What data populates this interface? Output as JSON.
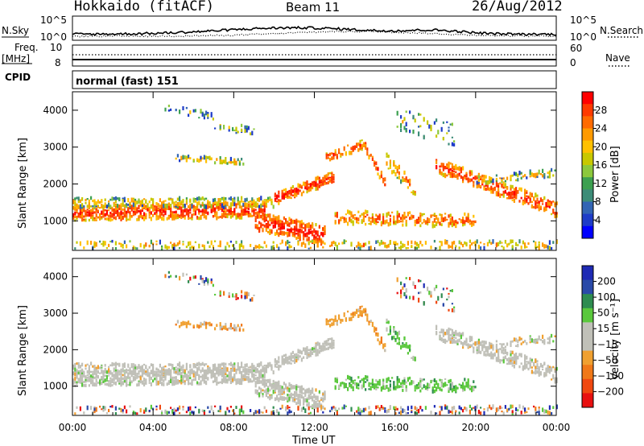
{
  "header": {
    "station": "Hokkaido (fitACF)",
    "beam": "Beam 11",
    "date": "26/Aug/2012"
  },
  "nsky_panel": {
    "left_label": "N.Sky",
    "left_ticks": [
      "10^5",
      "10^0"
    ],
    "right_label": "N.Search",
    "right_ticks": [
      "10^5",
      "10^0"
    ]
  },
  "freq_panel": {
    "left_label_1": "Freq.",
    "left_label_2": "[MHz]",
    "left_ticks": [
      "10",
      "8"
    ],
    "right_label": "Nave",
    "right_ticks": [
      "60",
      "0"
    ]
  },
  "cpid_panel": {
    "label": "CPID",
    "value": "normal (fast) 151"
  },
  "chart_data": [
    {
      "type": "heatmap",
      "name": "power",
      "ylabel": "Slant Range [km]",
      "ylim": [
        200,
        4500
      ],
      "yticks": [
        "1000",
        "2000",
        "3000",
        "4000"
      ],
      "colorbar_label": "Power [dB]",
      "colorbar_ticks": [
        "28",
        "24",
        "20",
        "16",
        "12",
        "8",
        "4"
      ],
      "colorbar_colors": [
        "#ff0000",
        "#ff3a00",
        "#ff6a00",
        "#ff9a00",
        "#ffc000",
        "#c8c800",
        "#8cc83c",
        "#3ca050",
        "#3c8c78",
        "#3264b4",
        "#1e3cc8",
        "#0000ff"
      ]
    },
    {
      "type": "heatmap",
      "name": "velocity",
      "ylabel": "Slant Range [km]",
      "ylim": [
        200,
        4500
      ],
      "yticks": [
        "1000",
        "2000",
        "3000",
        "4000"
      ],
      "xlabel": "Time UT",
      "xticks": [
        "00:00",
        "04:00",
        "08:00",
        "12:00",
        "16:00",
        "20:00",
        "00:00"
      ],
      "colorbar_label": "Velocity [m s⁻¹]",
      "colorbar_ticks": [
        "200",
        "100",
        "50",
        "15",
        "−15",
        "−50",
        "−100",
        "−200"
      ],
      "colorbar_colors": [
        "#1e2ab4",
        "#2a4aa8",
        "#2e8c50",
        "#5ac83c",
        "#c0c0b8",
        "#c0c0b8",
        "#f0a030",
        "#f07818",
        "#f04810",
        "#e81010"
      ]
    }
  ]
}
